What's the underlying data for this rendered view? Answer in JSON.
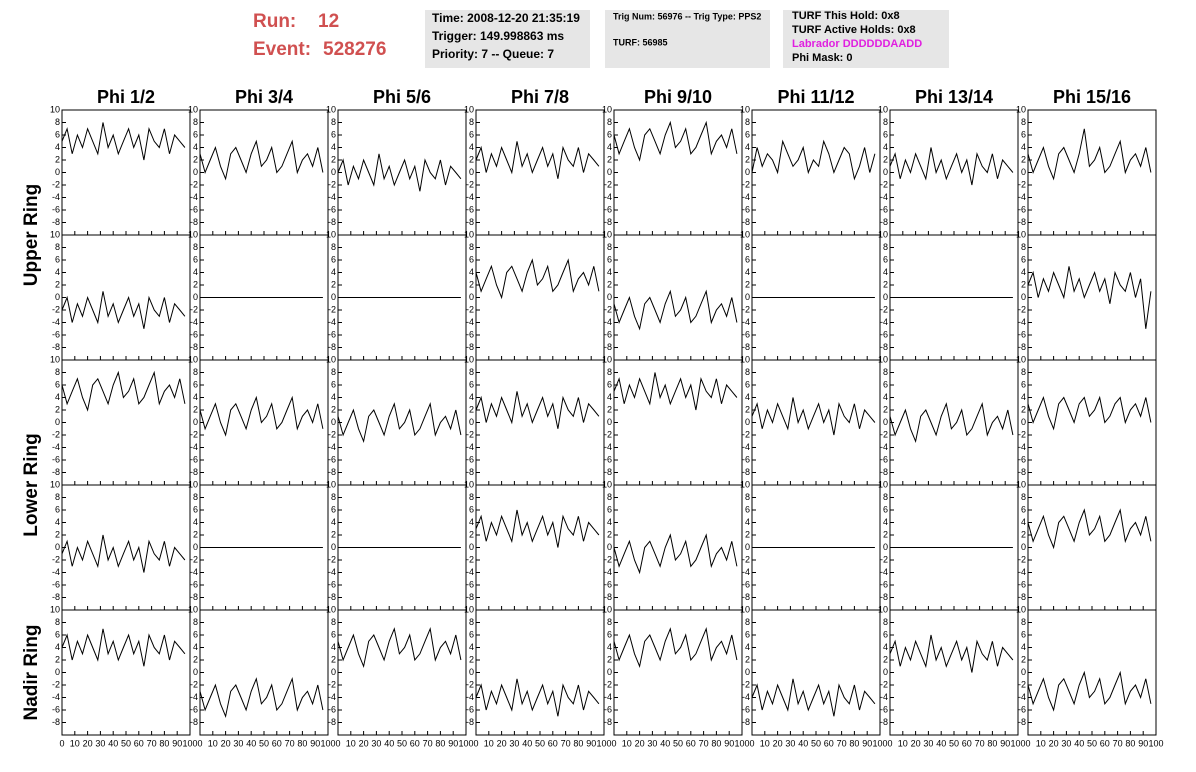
{
  "header": {
    "run_label": "Run:",
    "run": "12",
    "event_label": "Event:",
    "event": "528276",
    "time": "Time: 2008-12-20 21:35:19",
    "trigger": "Trigger: 149.998863 ms",
    "priority": "Priority: 7 -- Queue: 7",
    "trig_num": "Trig Num: 56976 -- Trig Type: PPS2",
    "turf": "TURF: 56985",
    "turf_this_hold": "TURF This Hold: 0x8",
    "turf_active_holds": "TURF Active Holds: 0x8",
    "labrador": "Labrador DDDDDDAADD",
    "phi_mask": "Phi Mask: 0"
  },
  "chart_data": {
    "type": "line",
    "color": "#000000",
    "columns": [
      "Phi 1/2",
      "Phi 3/4",
      "Phi 5/6",
      "Phi 7/8",
      "Phi 9/10",
      "Phi 11/12",
      "Phi 13/14",
      "Phi 15/16"
    ],
    "ring_labels": [
      "Upper Ring",
      "Lower Ring",
      "Nadir Ring"
    ],
    "xlim": [
      0,
      100
    ],
    "xticks": [
      0,
      10,
      20,
      30,
      40,
      50,
      60,
      70,
      80,
      90,
      100
    ],
    "ylim": [
      -10,
      10
    ],
    "yticks": [
      -8,
      -6,
      -4,
      -2,
      0,
      2,
      4,
      6,
      8,
      10
    ],
    "x": [
      0,
      4,
      8,
      12,
      16,
      20,
      24,
      28,
      32,
      36,
      40,
      44,
      48,
      52,
      56,
      60,
      64,
      68,
      72,
      76,
      80,
      84,
      88,
      92,
      96
    ],
    "panels": [
      [
        [
          5,
          7,
          3,
          6,
          4,
          7,
          5,
          3,
          8,
          4,
          6,
          3,
          5,
          7,
          4,
          6,
          2,
          7,
          5,
          4,
          7,
          3,
          6,
          5,
          4
        ],
        [
          3,
          0,
          2,
          4,
          1,
          -1,
          3,
          4,
          2,
          0,
          3,
          5,
          1,
          2,
          4,
          0,
          1,
          3,
          5,
          0,
          2,
          3,
          1,
          4,
          0
        ],
        [
          0,
          2,
          -2,
          1,
          -1,
          2,
          0,
          -2,
          3,
          -1,
          1,
          -2,
          0,
          2,
          -1,
          1,
          -3,
          2,
          0,
          -1,
          2,
          -2,
          1,
          0,
          -1
        ],
        [
          2,
          4,
          0,
          3,
          1,
          4,
          2,
          0,
          5,
          1,
          3,
          0,
          2,
          4,
          1,
          3,
          -1,
          4,
          2,
          1,
          4,
          0,
          3,
          2,
          1
        ],
        [
          6,
          3,
          5,
          7,
          4,
          2,
          6,
          7,
          5,
          3,
          6,
          8,
          4,
          5,
          7,
          3,
          4,
          6,
          8,
          3,
          5,
          6,
          4,
          7,
          3
        ],
        [
          0,
          4,
          1,
          3,
          2,
          0,
          5,
          3,
          1,
          2,
          4,
          0,
          2,
          1,
          5,
          3,
          0,
          2,
          4,
          3,
          -1,
          1,
          4,
          0,
          3
        ],
        [
          1,
          3,
          -1,
          2,
          0,
          3,
          1,
          -1,
          4,
          0,
          2,
          -1,
          1,
          3,
          0,
          2,
          -2,
          3,
          1,
          0,
          3,
          -1,
          2,
          1,
          0
        ],
        [
          3,
          0,
          2,
          4,
          1,
          -1,
          3,
          4,
          2,
          0,
          3,
          7,
          1,
          2,
          4,
          0,
          1,
          3,
          5,
          0,
          2,
          3,
          1,
          4,
          0
        ]
      ],
      [
        [
          -2,
          0,
          -4,
          -1,
          -3,
          0,
          -2,
          -4,
          1,
          -3,
          -1,
          -4,
          -2,
          0,
          -3,
          -1,
          -5,
          0,
          -2,
          -3,
          0,
          -4,
          -1,
          -2,
          -3
        ],
        [
          0,
          0,
          0,
          0,
          0,
          0,
          0,
          0,
          0,
          0,
          0,
          0,
          0,
          0,
          0,
          0,
          0,
          0,
          0,
          0,
          0,
          0,
          0,
          0,
          0
        ],
        [
          0,
          0,
          0,
          0,
          0,
          0,
          0,
          0,
          0,
          0,
          0,
          0,
          0,
          0,
          0,
          0,
          0,
          0,
          0,
          0,
          0,
          0,
          0,
          0,
          0
        ],
        [
          4,
          1,
          3,
          5,
          2,
          0,
          4,
          5,
          3,
          1,
          4,
          6,
          2,
          3,
          5,
          1,
          2,
          4,
          6,
          1,
          3,
          4,
          2,
          5,
          1
        ],
        [
          -1,
          -4,
          -2,
          0,
          -3,
          -5,
          -1,
          0,
          -2,
          -4,
          -1,
          1,
          -3,
          -2,
          0,
          -4,
          -3,
          -1,
          1,
          -4,
          -2,
          -1,
          -3,
          0,
          -4
        ],
        [
          0,
          0,
          0,
          0,
          0,
          0,
          0,
          0,
          0,
          0,
          0,
          0,
          0,
          0,
          0,
          0,
          0,
          0,
          0,
          0,
          0,
          0,
          0,
          0,
          0
        ],
        [
          0,
          0,
          0,
          0,
          0,
          0,
          0,
          0,
          0,
          0,
          0,
          0,
          0,
          0,
          0,
          0,
          0,
          0,
          0,
          0,
          0,
          0,
          0,
          0,
          0
        ],
        [
          2,
          4,
          0,
          3,
          1,
          4,
          2,
          0,
          5,
          1,
          3,
          0,
          2,
          4,
          1,
          3,
          -1,
          4,
          2,
          1,
          4,
          0,
          3,
          -5,
          1
        ]
      ],
      [
        [
          6,
          3,
          5,
          7,
          4,
          2,
          6,
          7,
          5,
          3,
          6,
          8,
          4,
          5,
          7,
          3,
          4,
          6,
          8,
          3,
          5,
          6,
          4,
          7,
          3
        ],
        [
          2,
          -1,
          1,
          3,
          0,
          -2,
          2,
          3,
          1,
          -1,
          2,
          4,
          0,
          1,
          3,
          -1,
          0,
          2,
          4,
          -1,
          1,
          2,
          0,
          3,
          -1
        ],
        [
          1,
          -2,
          0,
          2,
          -1,
          -3,
          1,
          2,
          0,
          -2,
          1,
          3,
          -1,
          0,
          2,
          -2,
          -1,
          1,
          3,
          -2,
          0,
          1,
          -1,
          2,
          -2
        ],
        [
          2,
          4,
          0,
          3,
          1,
          4,
          2,
          0,
          5,
          1,
          3,
          0,
          2,
          4,
          1,
          3,
          -1,
          4,
          2,
          1,
          4,
          0,
          3,
          2,
          1
        ],
        [
          5,
          7,
          3,
          6,
          4,
          7,
          5,
          3,
          8,
          4,
          6,
          3,
          5,
          7,
          4,
          6,
          2,
          7,
          5,
          4,
          7,
          3,
          6,
          5,
          4
        ],
        [
          1,
          3,
          -1,
          2,
          0,
          3,
          1,
          -1,
          4,
          0,
          2,
          -1,
          1,
          3,
          0,
          2,
          -2,
          3,
          1,
          0,
          3,
          -1,
          2,
          1,
          0
        ],
        [
          1,
          -2,
          0,
          2,
          -1,
          -3,
          1,
          2,
          0,
          -2,
          1,
          3,
          -1,
          0,
          2,
          -2,
          -1,
          1,
          3,
          -2,
          0,
          1,
          -1,
          2,
          -2
        ],
        [
          3,
          0,
          2,
          4,
          1,
          -1,
          3,
          4,
          2,
          0,
          3,
          4,
          1,
          2,
          4,
          0,
          1,
          3,
          4,
          0,
          2,
          3,
          1,
          4,
          0
        ]
      ],
      [
        [
          -1,
          1,
          -3,
          0,
          -2,
          1,
          -1,
          -3,
          2,
          -2,
          0,
          -3,
          -1,
          1,
          -2,
          0,
          -4,
          1,
          -1,
          -2,
          1,
          -3,
          0,
          -1,
          -2
        ],
        [
          0,
          0,
          0,
          0,
          0,
          0,
          0,
          0,
          0,
          0,
          0,
          0,
          0,
          0,
          0,
          0,
          0,
          0,
          0,
          0,
          0,
          0,
          0,
          0,
          0
        ],
        [
          0,
          0,
          0,
          0,
          0,
          0,
          0,
          0,
          0,
          0,
          0,
          0,
          0,
          0,
          0,
          0,
          0,
          0,
          0,
          0,
          0,
          0,
          0,
          0,
          0
        ],
        [
          3,
          5,
          1,
          4,
          2,
          5,
          3,
          1,
          6,
          2,
          4,
          1,
          3,
          5,
          2,
          4,
          0,
          5,
          3,
          2,
          5,
          1,
          4,
          3,
          2
        ],
        [
          0,
          -3,
          -1,
          1,
          -2,
          -4,
          0,
          1,
          -1,
          -3,
          0,
          2,
          -2,
          -1,
          1,
          -3,
          -2,
          0,
          2,
          -3,
          -1,
          0,
          -2,
          1,
          -3
        ],
        [
          0,
          0,
          0,
          0,
          0,
          0,
          0,
          0,
          0,
          0,
          0,
          0,
          0,
          0,
          0,
          0,
          0,
          0,
          0,
          0,
          0,
          0,
          0,
          0,
          0
        ],
        [
          0,
          0,
          0,
          0,
          0,
          0,
          0,
          0,
          0,
          0,
          0,
          0,
          0,
          0,
          0,
          0,
          0,
          0,
          0,
          0,
          0,
          0,
          0,
          0,
          0
        ],
        [
          4,
          1,
          3,
          5,
          2,
          0,
          4,
          5,
          3,
          1,
          4,
          6,
          2,
          3,
          5,
          1,
          2,
          4,
          6,
          1,
          3,
          4,
          2,
          5,
          1
        ]
      ],
      [
        [
          4,
          6,
          2,
          5,
          3,
          6,
          4,
          2,
          7,
          3,
          5,
          2,
          4,
          6,
          3,
          5,
          1,
          6,
          4,
          3,
          6,
          2,
          5,
          4,
          3
        ],
        [
          -3,
          -6,
          -4,
          -2,
          -5,
          -7,
          -3,
          -2,
          -4,
          -6,
          -3,
          -1,
          -5,
          -4,
          -2,
          -6,
          -5,
          -3,
          -1,
          -6,
          -4,
          -3,
          -5,
          -2,
          -6
        ],
        [
          5,
          2,
          4,
          6,
          3,
          1,
          5,
          6,
          4,
          2,
          5,
          7,
          3,
          4,
          6,
          2,
          3,
          5,
          7,
          2,
          4,
          5,
          3,
          6,
          2
        ],
        [
          -4,
          -2,
          -6,
          -3,
          -5,
          -2,
          -4,
          -6,
          -1,
          -5,
          -3,
          -6,
          -4,
          -2,
          -5,
          -3,
          -7,
          -2,
          -4,
          -5,
          -2,
          -6,
          -3,
          -4,
          -5
        ],
        [
          5,
          2,
          4,
          6,
          3,
          1,
          5,
          6,
          4,
          2,
          5,
          7,
          3,
          4,
          6,
          2,
          3,
          5,
          7,
          2,
          4,
          5,
          3,
          6,
          2
        ],
        [
          -4,
          -2,
          -6,
          -3,
          -5,
          -2,
          -4,
          -6,
          -1,
          -5,
          -3,
          -6,
          -4,
          -2,
          -5,
          -3,
          -7,
          -2,
          -4,
          -5,
          -2,
          -6,
          -3,
          -4,
          -5
        ],
        [
          3,
          5,
          1,
          4,
          2,
          5,
          3,
          1,
          6,
          2,
          4,
          1,
          3,
          5,
          2,
          4,
          0,
          5,
          3,
          2,
          5,
          1,
          4,
          3,
          2
        ],
        [
          -2,
          -5,
          -3,
          -1,
          -4,
          -6,
          -2,
          -1,
          -3,
          -5,
          -2,
          0,
          -4,
          -3,
          -1,
          -5,
          -4,
          -2,
          0,
          -5,
          -3,
          -2,
          -4,
          -1,
          -5
        ]
      ]
    ]
  }
}
